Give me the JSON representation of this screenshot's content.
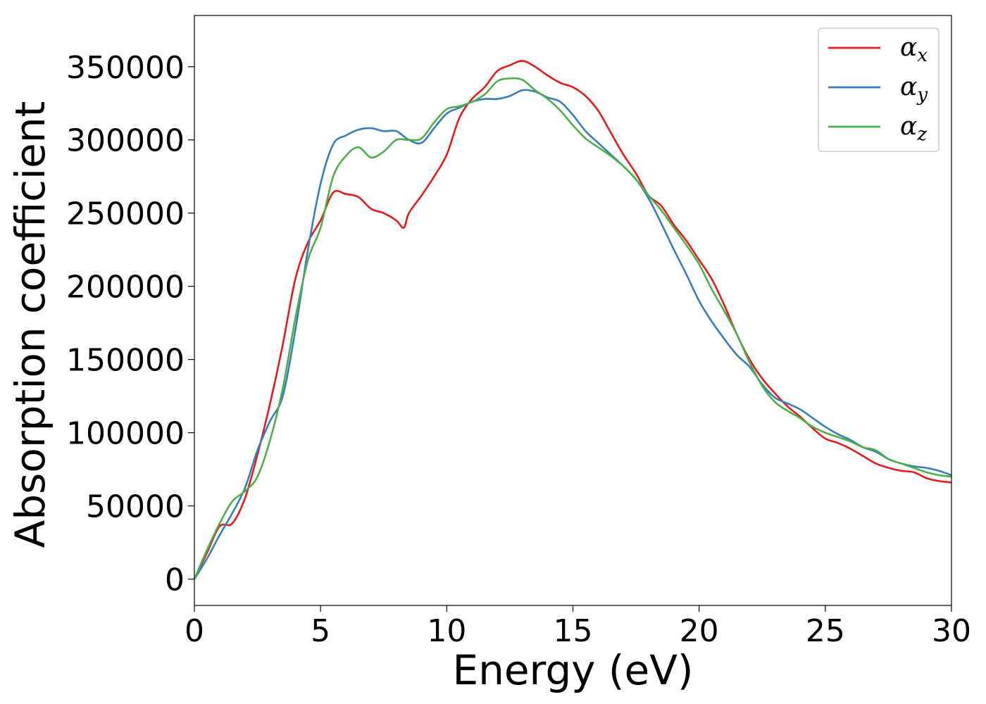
{
  "chart_data": {
    "type": "line",
    "title": "",
    "xlabel": "Energy (eV)",
    "ylabel": "Absorption coefficient",
    "xlim": [
      0,
      30
    ],
    "ylim": [
      -18000,
      385000
    ],
    "xticks": [
      0,
      5,
      10,
      15,
      20,
      25,
      30
    ],
    "yticks": [
      0,
      50000,
      100000,
      150000,
      200000,
      250000,
      300000,
      350000
    ],
    "grid": false,
    "legend_position": "top-right",
    "series": [
      {
        "name": "αx",
        "symbol": "α",
        "subscript": "x",
        "color": "#e41a1c",
        "x": [
          0,
          0.5,
          1.0,
          1.5,
          2.0,
          2.5,
          3.0,
          3.5,
          4.0,
          4.5,
          5.0,
          5.5,
          6.0,
          6.5,
          7.0,
          7.5,
          8.0,
          8.3,
          8.5,
          9.0,
          9.5,
          10.0,
          10.5,
          11.0,
          11.5,
          12.0,
          12.5,
          13.0,
          13.5,
          14.0,
          14.5,
          15.0,
          15.5,
          16.0,
          16.5,
          17.0,
          17.5,
          18.0,
          18.5,
          19.0,
          19.5,
          20.0,
          20.5,
          21.0,
          21.5,
          22.0,
          22.5,
          23.0,
          23.5,
          24.0,
          24.5,
          25.0,
          25.5,
          26.0,
          26.5,
          27.0,
          27.5,
          28.0,
          28.5,
          29.0,
          29.5,
          30.0
        ],
        "values": [
          0,
          18000,
          36000,
          38000,
          55000,
          85000,
          120000,
          160000,
          205000,
          230000,
          245000,
          264000,
          263000,
          261000,
          253000,
          250000,
          245000,
          240000,
          250000,
          262000,
          275000,
          290000,
          315000,
          328000,
          336000,
          347000,
          351000,
          354000,
          350000,
          344000,
          339000,
          336000,
          330000,
          320000,
          305000,
          290000,
          277000,
          262000,
          255000,
          242000,
          231000,
          218000,
          205000,
          187000,
          167000,
          150000,
          137000,
          127000,
          118000,
          111000,
          103000,
          96000,
          93000,
          89000,
          84000,
          79000,
          76000,
          74000,
          73000,
          69000,
          67000,
          66000
        ]
      },
      {
        "name": "αy",
        "symbol": "α",
        "subscript": "y",
        "color": "#377eb8",
        "x": [
          0,
          0.5,
          1.0,
          1.5,
          2.0,
          2.5,
          3.0,
          3.5,
          4.0,
          4.5,
          5.0,
          5.5,
          6.0,
          6.5,
          7.0,
          7.5,
          8.0,
          8.5,
          9.0,
          9.5,
          10.0,
          10.5,
          11.0,
          11.5,
          12.0,
          12.5,
          13.0,
          13.5,
          14.0,
          14.5,
          15.0,
          15.5,
          16.0,
          16.5,
          17.0,
          17.5,
          18.0,
          18.5,
          19.0,
          19.5,
          20.0,
          20.5,
          21.0,
          21.5,
          22.0,
          22.5,
          23.0,
          23.5,
          24.0,
          24.5,
          25.0,
          25.5,
          26.0,
          26.5,
          27.0,
          27.5,
          28.0,
          28.5,
          29.0,
          29.5,
          30.0
        ],
        "values": [
          0,
          14000,
          30000,
          45000,
          62000,
          88000,
          108000,
          125000,
          170000,
          225000,
          270000,
          297000,
          303000,
          307000,
          308000,
          306000,
          306000,
          300000,
          298000,
          308000,
          318000,
          322000,
          326000,
          328000,
          328000,
          330000,
          334000,
          333000,
          329000,
          326000,
          317000,
          306000,
          298000,
          290000,
          282000,
          273000,
          260000,
          243000,
          225000,
          208000,
          190000,
          176000,
          164000,
          153000,
          145000,
          133000,
          124000,
          120000,
          116000,
          110000,
          104000,
          99000,
          95000,
          90000,
          87000,
          82000,
          79000,
          77000,
          76000,
          74000,
          71000
        ]
      },
      {
        "name": "αz",
        "symbol": "α",
        "subscript": "z",
        "color": "#4daf4a",
        "x": [
          0,
          0.5,
          1.0,
          1.5,
          2.0,
          2.5,
          3.0,
          3.5,
          4.0,
          4.5,
          5.0,
          5.5,
          6.0,
          6.5,
          7.0,
          7.5,
          8.0,
          8.5,
          9.0,
          9.5,
          10.0,
          10.5,
          11.0,
          11.5,
          12.0,
          12.5,
          13.0,
          13.5,
          14.0,
          14.5,
          15.0,
          15.5,
          16.0,
          16.5,
          17.0,
          17.5,
          18.0,
          18.5,
          19.0,
          19.5,
          20.0,
          20.5,
          21.0,
          21.5,
          22.0,
          22.5,
          23.0,
          23.5,
          24.0,
          24.5,
          25.0,
          25.5,
          26.0,
          26.5,
          27.0,
          27.5,
          28.0,
          28.5,
          29.0,
          29.5,
          30.0
        ],
        "values": [
          0,
          20000,
          38000,
          53000,
          60000,
          70000,
          95000,
          130000,
          178000,
          218000,
          240000,
          275000,
          289000,
          295000,
          288000,
          292000,
          300000,
          300000,
          301000,
          312000,
          321000,
          323000,
          326000,
          331000,
          340000,
          342000,
          341000,
          334000,
          328000,
          320000,
          310000,
          301000,
          295000,
          289000,
          282000,
          273000,
          262000,
          252000,
          240000,
          228000,
          215000,
          198000,
          183000,
          167000,
          148000,
          132000,
          121000,
          115000,
          110000,
          104000,
          100000,
          97000,
          94000,
          90000,
          88000,
          82000,
          79000,
          76000,
          73000,
          71000,
          70000
        ]
      }
    ]
  }
}
